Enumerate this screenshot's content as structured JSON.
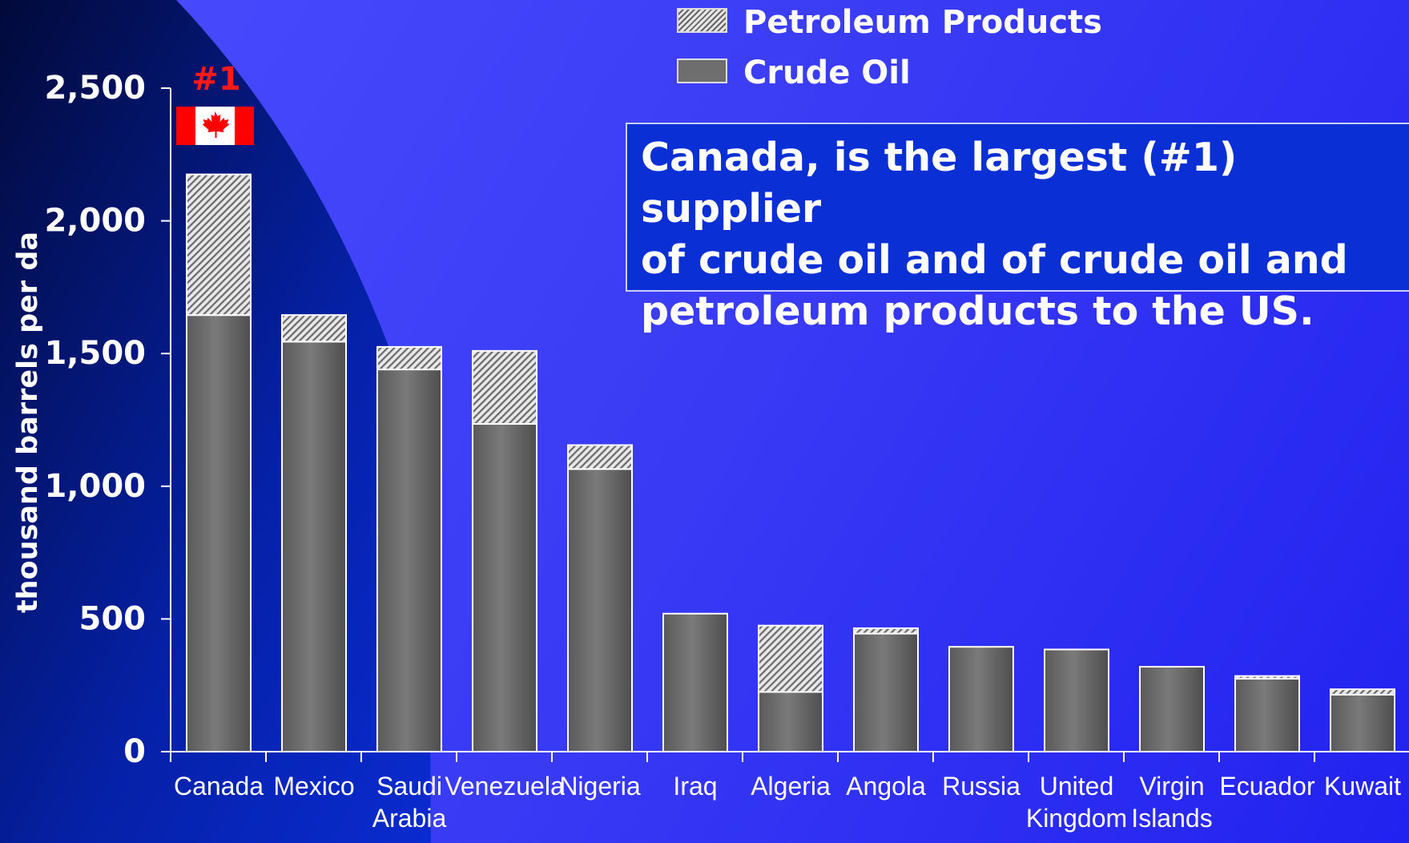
{
  "chart_data": {
    "type": "bar",
    "stacked": true,
    "ylabel": "thousand barrels per da",
    "ylim": [
      0,
      2500
    ],
    "yticks": [
      "0",
      "500",
      "1,000",
      "1,500",
      "2,000",
      "2,500"
    ],
    "categories": [
      "Canada",
      "Mexico",
      "Saudi Arabia",
      "Venezuela",
      "Nigeria",
      "Iraq",
      "Algeria",
      "Angola",
      "Russia",
      "United Kingdom",
      "Virgin Islands",
      "Ecuador",
      "Kuwait"
    ],
    "category_lines": [
      [
        "Canada"
      ],
      [
        "Mexico"
      ],
      [
        "Saudi",
        "Arabia"
      ],
      [
        "Venezuela"
      ],
      [
        "Nigeria"
      ],
      [
        "Iraq"
      ],
      [
        "Algeria"
      ],
      [
        "Angola"
      ],
      [
        "Russia"
      ],
      [
        "United",
        "Kingdom"
      ],
      [
        "Virgin",
        "Islands"
      ],
      [
        "Ecuador"
      ],
      [
        "Kuwait"
      ]
    ],
    "series": [
      {
        "name": "Crude Oil",
        "values": [
          1645,
          1545,
          1440,
          1235,
          1065,
          520,
          225,
          445,
          395,
          385,
          320,
          275,
          215
        ],
        "color": "#6e6e6e"
      },
      {
        "name": "Petroleum Products",
        "values": [
          530,
          100,
          85,
          275,
          90,
          0,
          250,
          20,
          0,
          0,
          0,
          10,
          20
        ],
        "color": "#e6e6e6"
      }
    ],
    "legend_position": "top"
  },
  "annotation": {
    "rank": "#1",
    "flag": "canada-flag",
    "text": "Canada, is the largest (#1) supplier\nof crude oil and of crude oil and\npetroleum products to the US."
  },
  "colors": {
    "background": "#3b3df5",
    "rank_text": "#ff1a1a",
    "callout_bg": "#0a2fd4",
    "flag_red": "#ff0000"
  }
}
